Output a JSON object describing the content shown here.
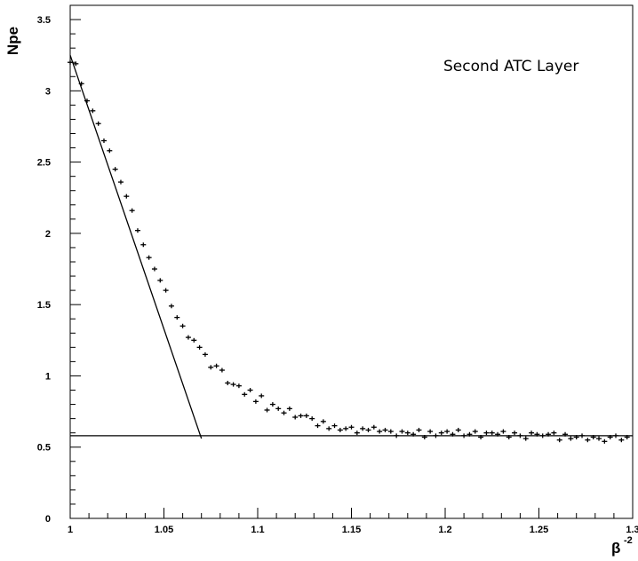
{
  "chart_data": {
    "type": "scatter",
    "title": "",
    "annotation": "Second ATC Layer",
    "xlabel": "β",
    "xlabel_exponent": "-2",
    "ylabel": "Npe",
    "xlim": [
      1.0,
      1.3
    ],
    "ylim": [
      0,
      3.6
    ],
    "x_ticks": [
      1,
      1.05,
      1.1,
      1.15,
      1.2,
      1.25,
      1.3
    ],
    "x_tick_labels": [
      "1",
      "1.05",
      "1.1",
      "1.15",
      "1.2",
      "1.25",
      "1.3"
    ],
    "y_ticks": [
      0,
      0.5,
      1,
      1.5,
      2,
      2.5,
      3,
      3.5
    ],
    "y_tick_labels": [
      "0",
      "0.5",
      "1",
      "1.5",
      "2",
      "2.5",
      "3",
      "3.5"
    ],
    "grid": false,
    "series": [
      {
        "x": [
          1.0,
          1.003,
          1.006,
          1.009,
          1.012,
          1.015,
          1.018,
          1.021,
          1.024,
          1.027,
          1.03,
          1.033,
          1.036,
          1.039,
          1.042,
          1.045,
          1.048,
          1.051,
          1.054,
          1.057,
          1.06,
          1.063,
          1.066,
          1.069,
          1.072,
          1.075,
          1.078,
          1.081,
          1.084,
          1.087,
          1.09,
          1.093,
          1.096,
          1.099,
          1.102,
          1.105,
          1.108,
          1.111,
          1.114,
          1.117,
          1.12,
          1.123,
          1.126,
          1.129,
          1.132,
          1.135,
          1.138,
          1.141,
          1.144,
          1.147,
          1.15,
          1.153,
          1.156,
          1.159,
          1.162,
          1.165,
          1.168,
          1.171,
          1.174,
          1.177,
          1.18,
          1.183,
          1.186,
          1.189,
          1.192,
          1.195,
          1.198,
          1.201,
          1.204,
          1.207,
          1.21,
          1.213,
          1.216,
          1.219,
          1.222,
          1.225,
          1.228,
          1.231,
          1.234,
          1.237,
          1.24,
          1.243,
          1.246,
          1.249,
          1.252,
          1.255,
          1.258,
          1.261,
          1.264,
          1.267,
          1.27,
          1.273,
          1.276,
          1.279,
          1.282,
          1.285,
          1.288,
          1.291,
          1.294,
          1.297
        ],
        "y": [
          3.2,
          3.19,
          3.05,
          2.93,
          2.86,
          2.77,
          2.65,
          2.58,
          2.45,
          2.36,
          2.26,
          2.16,
          2.02,
          1.92,
          1.83,
          1.75,
          1.67,
          1.6,
          1.49,
          1.41,
          1.35,
          1.27,
          1.25,
          1.2,
          1.15,
          1.06,
          1.07,
          1.04,
          0.95,
          0.94,
          0.93,
          0.87,
          0.9,
          0.82,
          0.86,
          0.76,
          0.8,
          0.77,
          0.74,
          0.77,
          0.71,
          0.72,
          0.72,
          0.7,
          0.65,
          0.68,
          0.63,
          0.65,
          0.62,
          0.63,
          0.64,
          0.6,
          0.63,
          0.62,
          0.64,
          0.61,
          0.62,
          0.61,
          0.58,
          0.61,
          0.6,
          0.59,
          0.62,
          0.57,
          0.61,
          0.58,
          0.6,
          0.61,
          0.59,
          0.62,
          0.58,
          0.59,
          0.61,
          0.57,
          0.6,
          0.6,
          0.59,
          0.61,
          0.57,
          0.6,
          0.58,
          0.56,
          0.6,
          0.59,
          0.58,
          0.59,
          0.6,
          0.55,
          0.59,
          0.56,
          0.57,
          0.58,
          0.55,
          0.57,
          0.56,
          0.54,
          0.57,
          0.58,
          0.55,
          0.57
        ]
      }
    ],
    "fit_lines": [
      {
        "x": [
          1.0,
          1.07
        ],
        "y": [
          3.25,
          0.56
        ]
      },
      {
        "x": [
          1.0,
          1.3
        ],
        "y": [
          0.58,
          0.58
        ]
      }
    ]
  }
}
